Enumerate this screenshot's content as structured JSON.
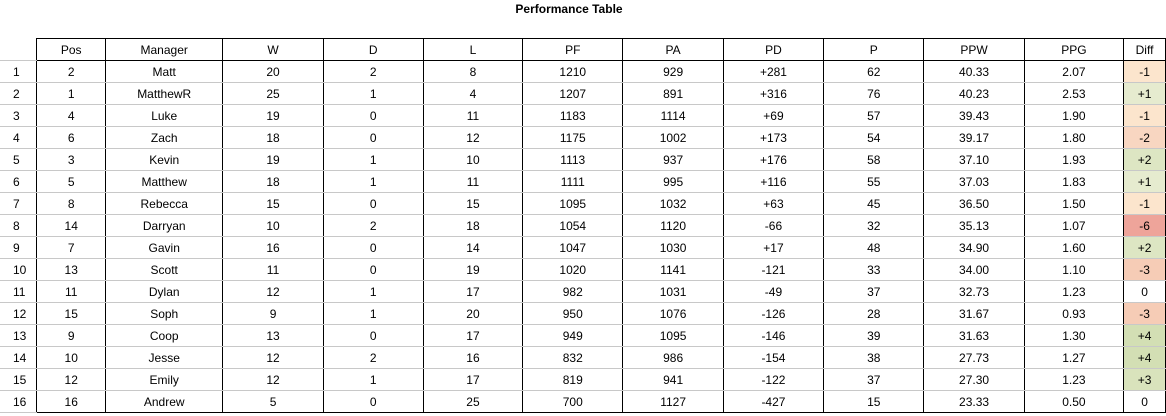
{
  "title": "Performance Table",
  "columns": [
    "Pos",
    "Manager",
    "W",
    "D",
    "L",
    "PF",
    "PA",
    "PD",
    "P",
    "PPW",
    "PPG",
    "Diff"
  ],
  "rows": [
    {
      "row": "1",
      "pos": "2",
      "manager": "Matt",
      "w": "20",
      "d": "2",
      "l": "8",
      "pf": "1210",
      "pa": "929",
      "pd": "+281",
      "p": "62",
      "ppw": "40.33",
      "ppg": "2.07",
      "diff": "-1",
      "diff_color": "#fce5cd"
    },
    {
      "row": "2",
      "pos": "1",
      "manager": "MatthewR",
      "w": "25",
      "d": "1",
      "l": "4",
      "pf": "1207",
      "pa": "891",
      "pd": "+316",
      "p": "76",
      "ppw": "40.23",
      "ppg": "2.53",
      "diff": "+1",
      "diff_color": "#e6ebcf"
    },
    {
      "row": "3",
      "pos": "4",
      "manager": "Luke",
      "w": "19",
      "d": "0",
      "l": "11",
      "pf": "1183",
      "pa": "1114",
      "pd": "+69",
      "p": "57",
      "ppw": "39.43",
      "ppg": "1.90",
      "diff": "-1",
      "diff_color": "#fce5cd"
    },
    {
      "row": "4",
      "pos": "6",
      "manager": "Zach",
      "w": "18",
      "d": "0",
      "l": "12",
      "pf": "1175",
      "pa": "1002",
      "pd": "+173",
      "p": "54",
      "ppw": "39.17",
      "ppg": "1.80",
      "diff": "-2",
      "diff_color": "#f8d6c1"
    },
    {
      "row": "5",
      "pos": "3",
      "manager": "Kevin",
      "w": "19",
      "d": "1",
      "l": "10",
      "pf": "1113",
      "pa": "937",
      "pd": "+176",
      "p": "58",
      "ppw": "37.10",
      "ppg": "1.93",
      "diff": "+2",
      "diff_color": "#dde6c3"
    },
    {
      "row": "6",
      "pos": "5",
      "manager": "Matthew",
      "w": "18",
      "d": "1",
      "l": "11",
      "pf": "1111",
      "pa": "995",
      "pd": "+116",
      "p": "55",
      "ppw": "37.03",
      "ppg": "1.83",
      "diff": "+1",
      "diff_color": "#e6ebcf"
    },
    {
      "row": "7",
      "pos": "8",
      "manager": "Rebecca",
      "w": "15",
      "d": "0",
      "l": "15",
      "pf": "1095",
      "pa": "1032",
      "pd": "+63",
      "p": "45",
      "ppw": "36.50",
      "ppg": "1.50",
      "diff": "-1",
      "diff_color": "#fce5cd"
    },
    {
      "row": "8",
      "pos": "14",
      "manager": "Darryan",
      "w": "10",
      "d": "2",
      "l": "18",
      "pf": "1054",
      "pa": "1120",
      "pd": "-66",
      "p": "32",
      "ppw": "35.13",
      "ppg": "1.07",
      "diff": "-6",
      "diff_color": "#eea49a"
    },
    {
      "row": "9",
      "pos": "7",
      "manager": "Gavin",
      "w": "16",
      "d": "0",
      "l": "14",
      "pf": "1047",
      "pa": "1030",
      "pd": "+17",
      "p": "48",
      "ppw": "34.90",
      "ppg": "1.60",
      "diff": "+2",
      "diff_color": "#dde6c3"
    },
    {
      "row": "10",
      "pos": "13",
      "manager": "Scott",
      "w": "11",
      "d": "0",
      "l": "19",
      "pf": "1020",
      "pa": "1141",
      "pd": "-121",
      "p": "33",
      "ppw": "34.00",
      "ppg": "1.10",
      "diff": "-3",
      "diff_color": "#f6ccb6"
    },
    {
      "row": "11",
      "pos": "11",
      "manager": "Dylan",
      "w": "12",
      "d": "1",
      "l": "17",
      "pf": "982",
      "pa": "1031",
      "pd": "-49",
      "p": "37",
      "ppw": "32.73",
      "ppg": "1.23",
      "diff": "0",
      "diff_color": "#ffffff"
    },
    {
      "row": "12",
      "pos": "15",
      "manager": "Soph",
      "w": "9",
      "d": "1",
      "l": "20",
      "pf": "950",
      "pa": "1076",
      "pd": "-126",
      "p": "28",
      "ppw": "31.67",
      "ppg": "0.93",
      "diff": "-3",
      "diff_color": "#f6ccb6"
    },
    {
      "row": "13",
      "pos": "9",
      "manager": "Coop",
      "w": "13",
      "d": "0",
      "l": "17",
      "pf": "949",
      "pa": "1095",
      "pd": "-146",
      "p": "39",
      "ppw": "31.63",
      "ppg": "1.30",
      "diff": "+4",
      "diff_color": "#d3dfb4"
    },
    {
      "row": "14",
      "pos": "10",
      "manager": "Jesse",
      "w": "12",
      "d": "2",
      "l": "16",
      "pf": "832",
      "pa": "986",
      "pd": "-154",
      "p": "38",
      "ppw": "27.73",
      "ppg": "1.27",
      "diff": "+4",
      "diff_color": "#d3dfb4"
    },
    {
      "row": "15",
      "pos": "12",
      "manager": "Emily",
      "w": "12",
      "d": "1",
      "l": "17",
      "pf": "819",
      "pa": "941",
      "pd": "-122",
      "p": "37",
      "ppw": "27.30",
      "ppg": "1.23",
      "diff": "+3",
      "diff_color": "#d9e3bc"
    },
    {
      "row": "16",
      "pos": "16",
      "manager": "Andrew",
      "w": "5",
      "d": "0",
      "l": "25",
      "pf": "700",
      "pa": "1127",
      "pd": "-427",
      "p": "15",
      "ppw": "23.33",
      "ppg": "0.50",
      "diff": "0",
      "diff_color": "#ffffff"
    }
  ]
}
